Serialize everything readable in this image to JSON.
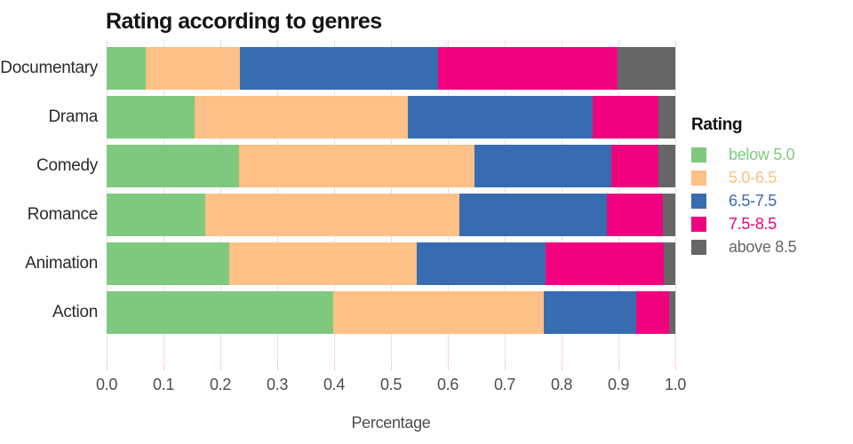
{
  "title": "Rating according to genres",
  "axis": {
    "xlabel": "Percentage",
    "x_tick_labels": [
      "0.0",
      "0.1",
      "0.2",
      "0.3",
      "0.4",
      "0.5",
      "0.6",
      "0.7",
      "0.8",
      "0.9",
      "1.0"
    ]
  },
  "legend": {
    "title": "Rating",
    "items": [
      {
        "label": "below 5.0",
        "color": "#7fc97f"
      },
      {
        "label": "5.0-6.5",
        "color": "#fdc086"
      },
      {
        "label": "6.5-7.5",
        "color": "#386cb0"
      },
      {
        "label": "7.5-8.5",
        "color": "#f0027f"
      },
      {
        "label": "above 8.5",
        "color": "#666666"
      }
    ]
  },
  "colors": {
    "grid": "#f6d9e4",
    "tick_text": "#4d4d4d",
    "category_text": "#2b2b2b",
    "title_text": "#141414"
  },
  "chart_data": {
    "type": "bar",
    "orientation": "horizontal",
    "stacked": true,
    "title": "Rating according to genres",
    "xlabel": "Percentage",
    "ylabel": "",
    "xlim": [
      0,
      1.0
    ],
    "x_ticks": [
      0,
      0.1,
      0.2,
      0.3,
      0.4,
      0.5,
      0.6,
      0.7,
      0.8,
      0.9,
      1.0
    ],
    "grid": true,
    "legend_title": "Rating",
    "legend_position": "right",
    "categories": [
      "Documentary",
      "Drama",
      "Comedy",
      "Romance",
      "Animation",
      "Action"
    ],
    "series": [
      {
        "name": "below 5.0",
        "color": "#7fc97f",
        "values": [
          0.068,
          0.155,
          0.233,
          0.173,
          0.216,
          0.398
        ]
      },
      {
        "name": "5.0-6.5",
        "color": "#fdc086",
        "values": [
          0.167,
          0.375,
          0.414,
          0.447,
          0.329,
          0.37
        ]
      },
      {
        "name": "6.5-7.5",
        "color": "#386cb0",
        "values": [
          0.348,
          0.325,
          0.24,
          0.26,
          0.227,
          0.163
        ]
      },
      {
        "name": "7.5-8.5",
        "color": "#f0027f",
        "values": [
          0.315,
          0.115,
          0.083,
          0.098,
          0.207,
          0.058
        ]
      },
      {
        "name": "above 8.5",
        "color": "#666666",
        "values": [
          0.102,
          0.03,
          0.03,
          0.022,
          0.021,
          0.011
        ]
      }
    ]
  }
}
